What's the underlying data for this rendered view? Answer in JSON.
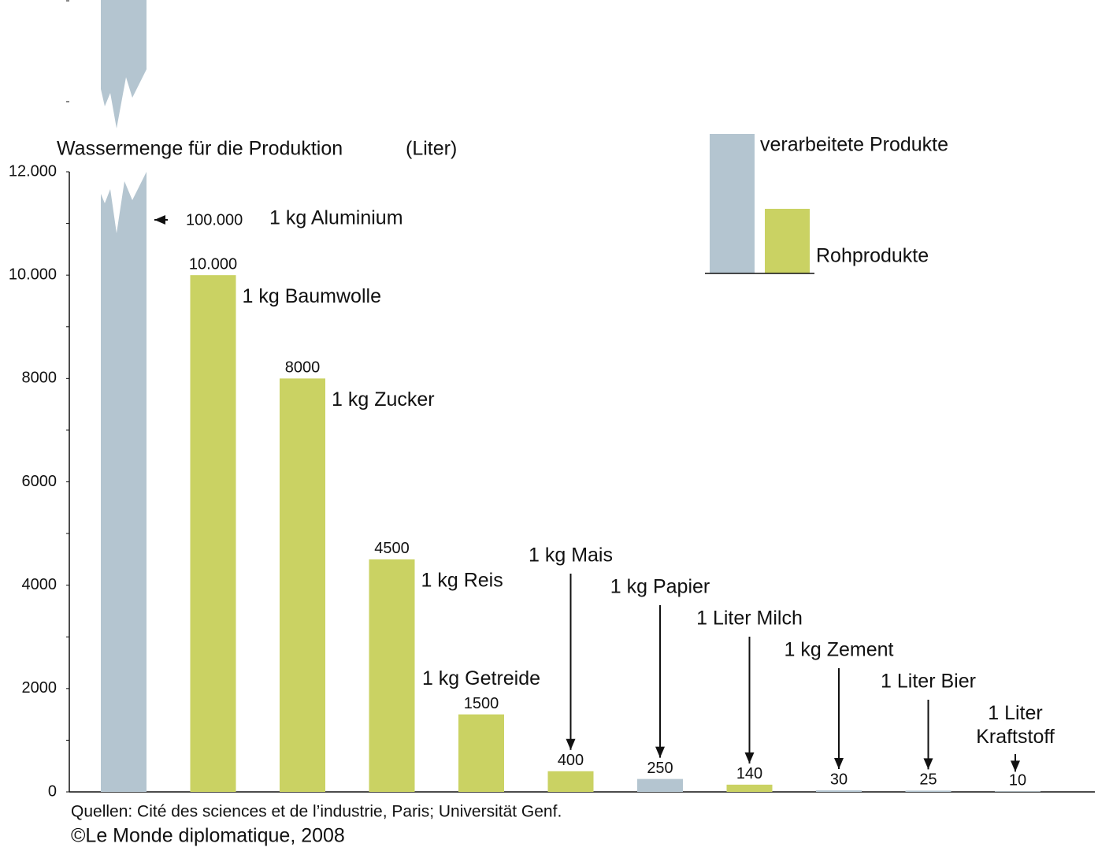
{
  "chart_data": {
    "type": "bar",
    "title": "Wassermenge für die Produktion",
    "unit_label": "(Liter)",
    "categories": [
      "1 kg Aluminium",
      "1 kg Baumwolle",
      "1 kg Zucker",
      "1 kg Reis",
      "1 kg Getreide",
      "1 kg Mais",
      "1 kg Papier",
      "1 Liter Milch",
      "1 kg Zement",
      "1 Liter Bier",
      "1 Liter Kraftstoff"
    ],
    "series": [
      {
        "name": "verarbeitete Produkte",
        "color": "#b4c5d0",
        "values": [
          100000,
          null,
          null,
          null,
          null,
          null,
          250,
          null,
          30,
          25,
          10
        ],
        "value_labels": [
          "100.000",
          null,
          null,
          null,
          null,
          null,
          "250",
          null,
          "30",
          "25",
          "10"
        ]
      },
      {
        "name": "Rohprodukte",
        "color": "#cad263",
        "values": [
          null,
          10000,
          8000,
          4500,
          1500,
          400,
          null,
          140,
          null,
          null,
          null
        ],
        "value_labels": [
          null,
          "10.000",
          "8000",
          "4500",
          "1500",
          "400",
          null,
          "140",
          null,
          null,
          null
        ]
      }
    ],
    "ylim": [
      0,
      12000
    ],
    "yticks": [
      0,
      2000,
      4000,
      6000,
      8000,
      {
        "value": 10000,
        "label": "10.000"
      },
      {
        "value": 12000,
        "label": "12.000"
      }
    ],
    "sources": [
      "Quellen: Cité des sciences et de l’industrie, Paris; Universität Genf.",
      "©Le Monde diplomatique, 2008"
    ]
  }
}
